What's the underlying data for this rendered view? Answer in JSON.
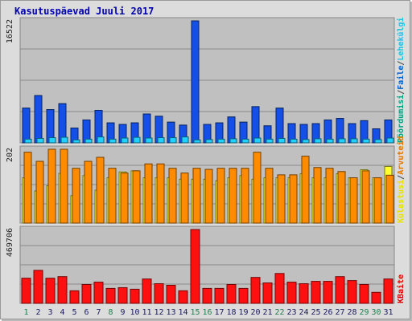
{
  "chart_data": {
    "type": "bar",
    "title": "Kasutuspäevad Juuli 2017",
    "x": [
      "1",
      "2",
      "3",
      "4",
      "5",
      "6",
      "7",
      "8",
      "9",
      "10",
      "11",
      "12",
      "13",
      "14",
      "15",
      "16",
      "17",
      "18",
      "19",
      "20",
      "21",
      "22",
      "23",
      "24",
      "25",
      "26",
      "27",
      "28",
      "29",
      "30",
      "31"
    ],
    "weekend_days": [
      "1",
      "8",
      "15",
      "16",
      "22",
      "29",
      "30"
    ],
    "panels": [
      {
        "id": "hits",
        "ytick": "16522",
        "ymax": 16522,
        "right_labels": [
          {
            "text": "Pöördumisi",
            "color": "#00a080"
          },
          {
            "text": "/",
            "color": "#444444"
          },
          {
            "text": "Faile",
            "color": "#0060d0"
          },
          {
            "text": "/",
            "color": "#444444"
          },
          {
            "text": "Lehekülgi",
            "color": "#20c0e0"
          }
        ],
        "series": [
          {
            "name": "Pöördumisi",
            "color": "#007e60",
            "values": [
              4700,
              6400,
              4500,
              5300,
              2000,
              3100,
              4400,
              2700,
              2500,
              2700,
              3900,
              3600,
              2800,
              2400,
              16522,
              2500,
              2700,
              3500,
              2800,
              4900,
              2300,
              4700,
              2600,
              2500,
              2600,
              3100,
              3300,
              2600,
              3000,
              1900,
              3100
            ]
          },
          {
            "name": "Faile",
            "color": "#1450e8",
            "values": [
              4700,
              6400,
              4500,
              5300,
              2000,
              3100,
              4400,
              2700,
              2500,
              2700,
              3900,
              3600,
              2800,
              2400,
              16522,
              2500,
              2700,
              3500,
              2800,
              4900,
              2300,
              4700,
              2600,
              2500,
              2600,
              3100,
              3300,
              2600,
              3000,
              1900,
              3100
            ]
          },
          {
            "name": "Lehekülgi",
            "color": "#20d0ff",
            "values": [
              500,
              600,
              700,
              750,
              400,
              500,
              800,
              500,
              650,
              750,
              650,
              700,
              700,
              800,
              400,
              450,
              500,
              550,
              500,
              650,
              500,
              600,
              500,
              450,
              550,
              500,
              550,
              550,
              500,
              450,
              650
            ]
          }
        ]
      },
      {
        "id": "visits",
        "ytick": "202",
        "ymax": 202,
        "right_labels": [
          {
            "text": "Külastusi",
            "color": "#e8e000"
          },
          {
            "text": "/",
            "color": "#444444"
          },
          {
            "text": "Arvuteid",
            "color": "#e07800"
          }
        ],
        "series": [
          {
            "name": "Külastusi",
            "color": "#ffff30",
            "values": [
              124,
              88,
              102,
              136,
              75,
              130,
              90,
              124,
              140,
              143,
              124,
              124,
              124,
              120,
              120,
              120,
              116,
              124,
              130,
              120,
              124,
              124,
              124,
              135,
              124,
              124,
              135,
              124,
              146,
              124,
              155
            ]
          },
          {
            "name": "Arvuteid",
            "color": "#ff8c00",
            "values": [
              194,
              169,
              202,
              202,
              150,
              169,
              180,
              150,
              137,
              143,
              162,
              162,
              150,
              137,
              150,
              147,
              150,
              150,
              150,
              194,
              150,
              132,
              132,
              183,
              152,
              150,
              141,
              124,
              143,
              124,
              131
            ]
          }
        ]
      },
      {
        "id": "bytes",
        "ytick": "469706",
        "ymax": 469706,
        "right_labels": [
          {
            "text": "KBaite",
            "color": "#e00000"
          }
        ],
        "series": [
          {
            "name": "KBaite",
            "color": "#ff1010",
            "values": [
              160000,
              210000,
              160000,
              170000,
              80000,
              120000,
              135000,
              95000,
              100000,
              90000,
              155000,
              125000,
              115000,
              80000,
              469706,
              95000,
              95000,
              120000,
              95000,
              165000,
              130000,
              190000,
              135000,
              125000,
              140000,
              140000,
              170000,
              145000,
              120000,
              70000,
              155000
            ]
          }
        ]
      }
    ]
  }
}
